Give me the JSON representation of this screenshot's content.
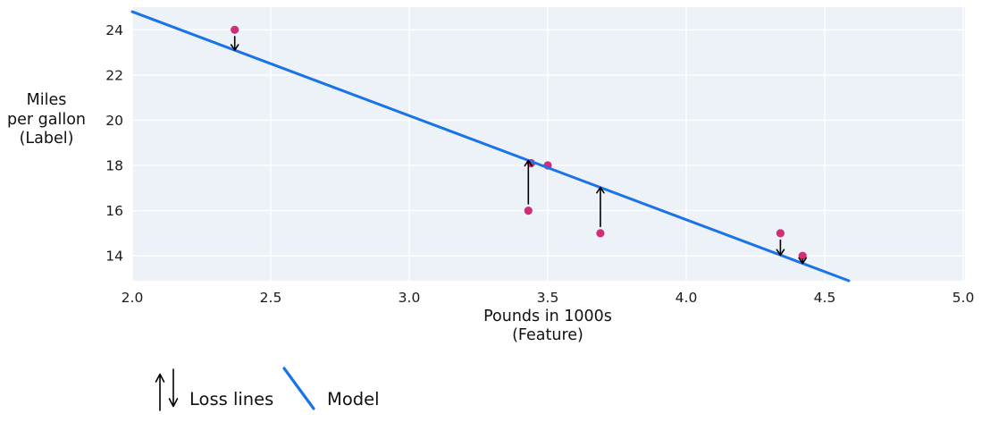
{
  "chart_data": {
    "type": "scatter",
    "xlabel_lines": [
      "Pounds in 1000s",
      "(Feature)"
    ],
    "ylabel_lines": [
      "Miles",
      "per gallon",
      "(Label)"
    ],
    "x_ticks": [
      "2.0",
      "2.5",
      "3.0",
      "3.5",
      "4.0",
      "4.5",
      "5.0"
    ],
    "y_ticks": [
      "14",
      "16",
      "18",
      "20",
      "22",
      "24"
    ],
    "xlim": [
      2.0,
      5.0
    ],
    "ylim": [
      12.9,
      25.0
    ],
    "grid": true,
    "points": [
      {
        "x": 2.37,
        "y": 24,
        "loss_arrow": true
      },
      {
        "x": 3.43,
        "y": 16,
        "loss_arrow": true
      },
      {
        "x": 3.44,
        "y": 18.1,
        "loss_arrow": false
      },
      {
        "x": 3.5,
        "y": 18,
        "loss_arrow": false
      },
      {
        "x": 3.69,
        "y": 15,
        "loss_arrow": true
      },
      {
        "x": 4.34,
        "y": 15,
        "loss_arrow": true
      },
      {
        "x": 4.42,
        "y": 14,
        "loss_arrow": true
      }
    ],
    "model": {
      "slope": -4.6,
      "intercept": 34
    },
    "legend": [
      {
        "symbol": "loss-arrows",
        "label": "Loss lines"
      },
      {
        "symbol": "model-line",
        "label": "Model"
      }
    ],
    "colors": {
      "model_line": "#1a73e8",
      "point": "#ce2f76",
      "loss_arrow": "#000000",
      "plot_bg": "#edf1f8",
      "grid": "#ffffff"
    }
  }
}
